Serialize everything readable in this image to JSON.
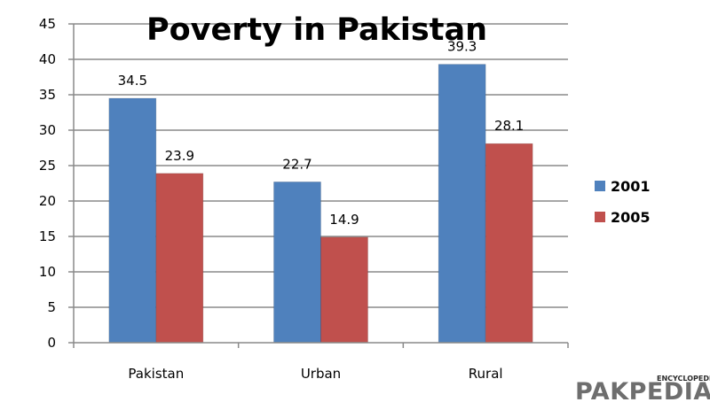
{
  "chart_data": {
    "type": "bar",
    "title": "Poverty in Pakistan",
    "categories": [
      "Pakistan",
      "Urban",
      "Rural"
    ],
    "series": [
      {
        "name": "2001",
        "values": [
          34.5,
          22.7,
          39.3
        ],
        "color": "#4F81BD"
      },
      {
        "name": "2005",
        "values": [
          23.9,
          14.9,
          28.1
        ],
        "color": "#C0504D"
      }
    ],
    "ylim": [
      0,
      45
    ],
    "yticks": [
      "0",
      "5",
      "10",
      "15",
      "20",
      "25",
      "30",
      "35",
      "40",
      "45"
    ],
    "data_labels": [
      [
        "34.5",
        "22.7",
        "39.3"
      ],
      [
        "23.9",
        "14.9",
        "28.1"
      ]
    ],
    "grid": true,
    "legend_position": "right"
  },
  "watermark": {
    "small_text": "ENCYCLOPEDIA",
    "main_text": "PAKPEDIA",
    "color": "#6e6e6e"
  }
}
